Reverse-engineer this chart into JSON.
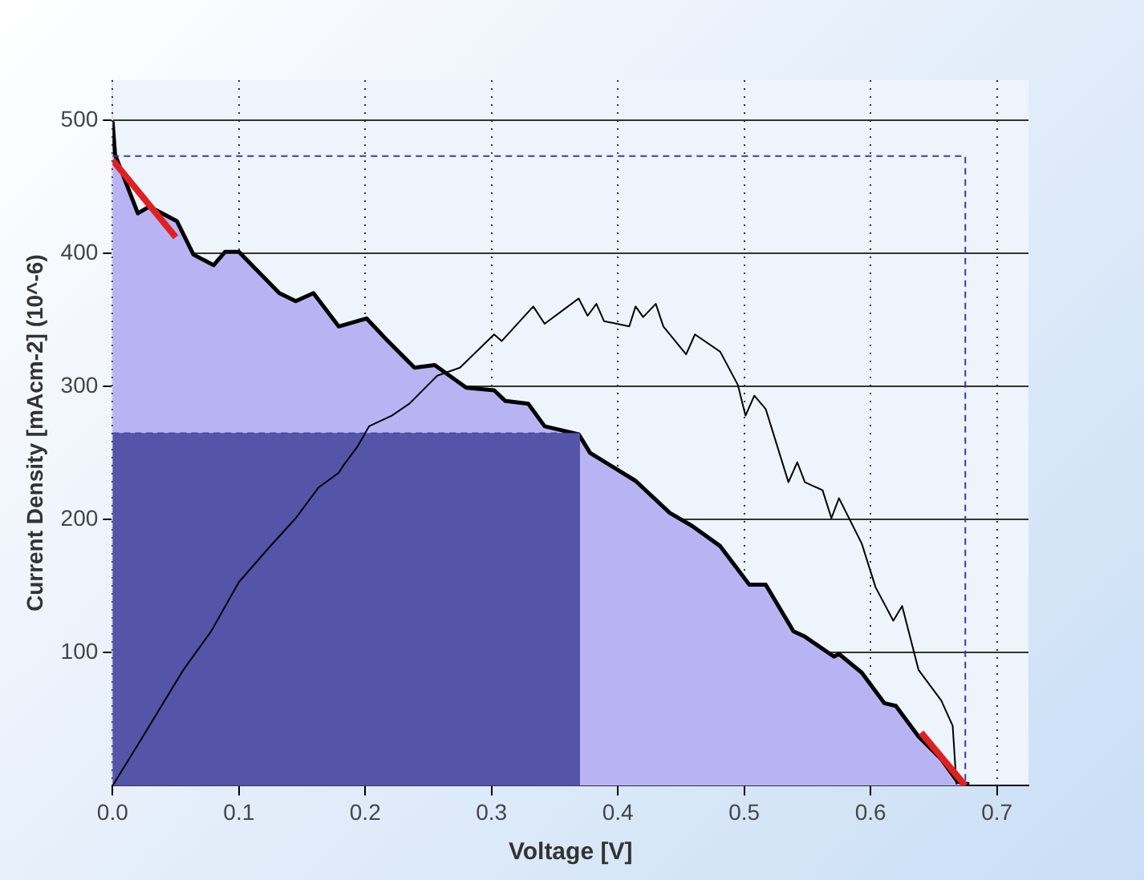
{
  "chart_data": {
    "type": "line",
    "xlabel": "Voltage [V]",
    "ylabel": "Current Density [mAcm-2] (10^-6)",
    "xlim": [
      0,
      0.725
    ],
    "ylim": [
      0,
      530
    ],
    "xticks": [
      {
        "value": 0,
        "label": "0.0"
      },
      {
        "value": 0.1,
        "label": "0.1"
      },
      {
        "value": 0.2,
        "label": "0.2"
      },
      {
        "value": 0.3,
        "label": "0.3"
      },
      {
        "value": 0.4,
        "label": "0.4"
      },
      {
        "value": 0.5,
        "label": "0.5"
      },
      {
        "value": 0.6,
        "label": "0.6"
      },
      {
        "value": 0.7,
        "label": "0.7"
      }
    ],
    "yticks": [
      100,
      200,
      300,
      400,
      500
    ],
    "grid": true,
    "marker": "none",
    "series": [
      {
        "type": "area",
        "color": "#b8b4f4",
        "x": [
          0,
          0.002,
          0.02,
          0.029,
          0.051,
          0.064,
          0.08,
          0.089,
          0.1,
          0.132,
          0.145,
          0.159,
          0.179,
          0.201,
          0.217,
          0.239,
          0.255,
          0.28,
          0.302,
          0.311,
          0.329,
          0.342,
          0.369,
          0.378,
          0.414,
          0.441,
          0.459,
          0.481,
          0.504,
          0.517,
          0.539,
          0.548,
          0.571,
          0.575,
          0.593,
          0.611,
          0.62,
          0.638,
          0.656,
          0.669,
          0.678
        ],
        "values": [
          499,
          474,
          430,
          435,
          424,
          399,
          391,
          401,
          401,
          370,
          364,
          370,
          345,
          351,
          335,
          314,
          316,
          299,
          297,
          289,
          287,
          270,
          264,
          250,
          229,
          205,
          195,
          180,
          151,
          151,
          116,
          112,
          97,
          99,
          85,
          62,
          60,
          37,
          20,
          3,
          1
        ]
      },
      {
        "type": "area",
        "color": "#5454a8",
        "line_style": "dashed",
        "x": [
          0,
          0.37
        ],
        "values": [
          265,
          265
        ]
      },
      {
        "color": "#000000",
        "x": [
          0,
          0.024,
          0.056,
          0.078,
          0.1,
          0.123,
          0.145,
          0.163,
          0.179,
          0.183,
          0.194,
          0.203,
          0.221,
          0.235,
          0.257,
          0.275,
          0.302,
          0.308,
          0.333,
          0.342,
          0.369,
          0.376,
          0.383,
          0.389,
          0.409,
          0.414,
          0.42,
          0.43,
          0.436,
          0.454,
          0.461,
          0.481,
          0.495,
          0.501,
          0.508,
          0.517,
          0.535,
          0.542,
          0.548,
          0.562,
          0.569,
          0.575,
          0.593,
          0.604,
          0.618,
          0.625,
          0.638,
          0.656,
          0.665,
          0.668
        ],
        "values": [
          0,
          37,
          87,
          116,
          153,
          178,
          201,
          224,
          235,
          241,
          255,
          270,
          278,
          287,
          308,
          314,
          339,
          334,
          360,
          347,
          366,
          353,
          362,
          349,
          345,
          360,
          352,
          362,
          345,
          324,
          339,
          326,
          301,
          278,
          293,
          283,
          228,
          243,
          228,
          222,
          201,
          216,
          182,
          149,
          124,
          135,
          87,
          64,
          45,
          1
        ]
      },
      {
        "color": "#3a3aa0",
        "line_style": "dashed",
        "x": [
          0,
          0.675,
          0.675
        ],
        "values": [
          473,
          473,
          0
        ]
      },
      {
        "color": "#e02020",
        "x": [
          0,
          0.05
        ],
        "values": [
          470,
          412
        ]
      },
      {
        "color": "#e02020",
        "x": [
          0.64,
          0.675
        ],
        "values": [
          40,
          0
        ]
      }
    ]
  }
}
